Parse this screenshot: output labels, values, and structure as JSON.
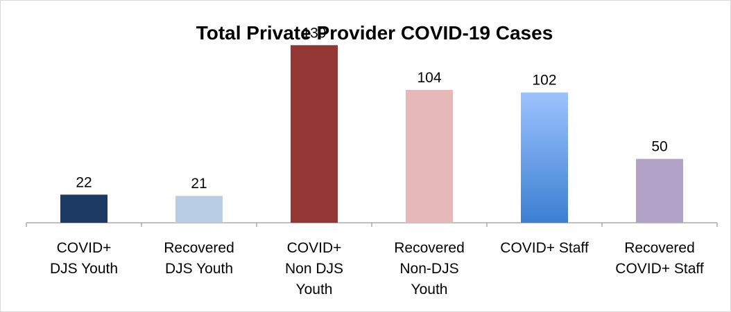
{
  "chart_data": {
    "type": "bar",
    "title": "Total Private Provider COVID-19 Cases",
    "categories": [
      [
        "COVID+",
        "DJS Youth"
      ],
      [
        "Recovered",
        "DJS Youth"
      ],
      [
        "COVID+",
        "Non DJS",
        "Youth"
      ],
      [
        "Recovered",
        "Non-DJS",
        "Youth"
      ],
      [
        "COVID+ Staff"
      ],
      [
        "Recovered",
        "COVID+ Staff"
      ]
    ],
    "values": [
      22,
      21,
      139,
      104,
      102,
      50
    ],
    "ylim": [
      0,
      150
    ],
    "grid": false,
    "legend": "none",
    "colors": [
      "#1c3a63",
      "#b9cde4",
      "#943634",
      "#e6b9b8",
      "#4a8fe0",
      "#b2a2c7"
    ],
    "gradient_bar_index": 4,
    "gradient_colors": [
      "#9dc3ff",
      "#3b7fd1"
    ]
  }
}
